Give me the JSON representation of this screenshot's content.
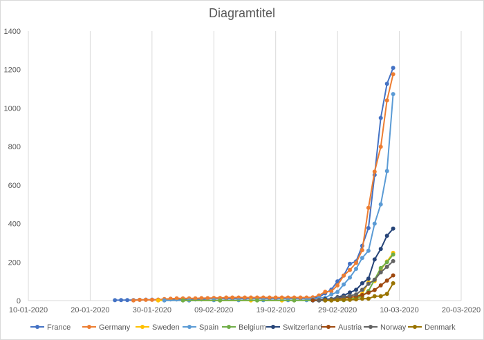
{
  "chart_data": {
    "type": "scatter",
    "title": "Diagramtitel",
    "xlabel": "",
    "ylabel": "",
    "x_ticks": [
      "10-01-2020",
      "20-01-2020",
      "30-01-2020",
      "09-02-2020",
      "19-02-2020",
      "29-02-2020",
      "10-03-2020",
      "20-03-2020"
    ],
    "y_ticks": [
      "0",
      "200",
      "400",
      "600",
      "800",
      "1000",
      "1200",
      "1400"
    ],
    "xlim": [
      "2020-01-10",
      "2020-03-20"
    ],
    "ylim": [
      0,
      1400
    ],
    "grid": "vertical",
    "legend": "bottom",
    "mode": "lines+markers",
    "series": [
      {
        "name": "France",
        "color": "#4472c4",
        "points": [
          [
            "2020-01-24",
            2
          ],
          [
            "2020-01-25",
            3
          ],
          [
            "2020-01-26",
            3
          ],
          [
            "2020-01-27",
            3
          ],
          [
            "2020-01-28",
            4
          ],
          [
            "2020-01-29",
            5
          ],
          [
            "2020-01-30",
            5
          ],
          [
            "2020-01-31",
            5
          ],
          [
            "2020-02-01",
            6
          ],
          [
            "2020-02-02",
            6
          ],
          [
            "2020-02-03",
            6
          ],
          [
            "2020-02-04",
            6
          ],
          [
            "2020-02-05",
            6
          ],
          [
            "2020-02-06",
            6
          ],
          [
            "2020-02-07",
            6
          ],
          [
            "2020-02-08",
            11
          ],
          [
            "2020-02-09",
            11
          ],
          [
            "2020-02-10",
            11
          ],
          [
            "2020-02-11",
            11
          ],
          [
            "2020-02-12",
            11
          ],
          [
            "2020-02-13",
            11
          ],
          [
            "2020-02-14",
            11
          ],
          [
            "2020-02-15",
            12
          ],
          [
            "2020-02-16",
            12
          ],
          [
            "2020-02-17",
            12
          ],
          [
            "2020-02-18",
            12
          ],
          [
            "2020-02-19",
            12
          ],
          [
            "2020-02-20",
            12
          ],
          [
            "2020-02-21",
            12
          ],
          [
            "2020-02-22",
            12
          ],
          [
            "2020-02-23",
            12
          ],
          [
            "2020-02-24",
            12
          ],
          [
            "2020-02-25",
            14
          ],
          [
            "2020-02-26",
            18
          ],
          [
            "2020-02-27",
            38
          ],
          [
            "2020-02-28",
            57
          ],
          [
            "2020-02-29",
            100
          ],
          [
            "2020-03-01",
            130
          ],
          [
            "2020-03-02",
            191
          ],
          [
            "2020-03-03",
            204
          ],
          [
            "2020-03-04",
            285
          ],
          [
            "2020-03-05",
            377
          ],
          [
            "2020-03-06",
            653
          ],
          [
            "2020-03-07",
            949
          ],
          [
            "2020-03-08",
            1126
          ],
          [
            "2020-03-09",
            1209
          ]
        ]
      },
      {
        "name": "Germany",
        "color": "#ed7d31",
        "points": [
          [
            "2020-01-27",
            1
          ],
          [
            "2020-01-28",
            4
          ],
          [
            "2020-01-29",
            4
          ],
          [
            "2020-01-30",
            4
          ],
          [
            "2020-01-31",
            5
          ],
          [
            "2020-02-01",
            8
          ],
          [
            "2020-02-02",
            10
          ],
          [
            "2020-02-03",
            12
          ],
          [
            "2020-02-04",
            12
          ],
          [
            "2020-02-05",
            12
          ],
          [
            "2020-02-06",
            12
          ],
          [
            "2020-02-07",
            13
          ],
          [
            "2020-02-08",
            13
          ],
          [
            "2020-02-09",
            14
          ],
          [
            "2020-02-10",
            14
          ],
          [
            "2020-02-11",
            16
          ],
          [
            "2020-02-12",
            16
          ],
          [
            "2020-02-13",
            16
          ],
          [
            "2020-02-14",
            16
          ],
          [
            "2020-02-15",
            16
          ],
          [
            "2020-02-16",
            16
          ],
          [
            "2020-02-17",
            16
          ],
          [
            "2020-02-18",
            16
          ],
          [
            "2020-02-19",
            16
          ],
          [
            "2020-02-20",
            16
          ],
          [
            "2020-02-21",
            16
          ],
          [
            "2020-02-22",
            16
          ],
          [
            "2020-02-23",
            16
          ],
          [
            "2020-02-24",
            16
          ],
          [
            "2020-02-25",
            17
          ],
          [
            "2020-02-26",
            27
          ],
          [
            "2020-02-27",
            46
          ],
          [
            "2020-02-28",
            48
          ],
          [
            "2020-02-29",
            79
          ],
          [
            "2020-03-01",
            130
          ],
          [
            "2020-03-02",
            159
          ],
          [
            "2020-03-03",
            196
          ],
          [
            "2020-03-04",
            262
          ],
          [
            "2020-03-05",
            482
          ],
          [
            "2020-03-06",
            670
          ],
          [
            "2020-03-07",
            799
          ],
          [
            "2020-03-08",
            1040
          ],
          [
            "2020-03-09",
            1176
          ]
        ]
      },
      {
        "name": "Sweden",
        "color": "#ffc000",
        "points": [
          [
            "2020-01-31",
            1
          ],
          [
            "2020-02-05",
            1
          ],
          [
            "2020-02-10",
            1
          ],
          [
            "2020-02-15",
            1
          ],
          [
            "2020-02-20",
            1
          ],
          [
            "2020-02-25",
            2
          ],
          [
            "2020-02-26",
            2
          ],
          [
            "2020-02-27",
            7
          ],
          [
            "2020-02-28",
            7
          ],
          [
            "2020-02-29",
            12
          ],
          [
            "2020-03-01",
            14
          ],
          [
            "2020-03-02",
            15
          ],
          [
            "2020-03-03",
            21
          ],
          [
            "2020-03-04",
            35
          ],
          [
            "2020-03-05",
            94
          ],
          [
            "2020-03-06",
            101
          ],
          [
            "2020-03-07",
            161
          ],
          [
            "2020-03-08",
            203
          ],
          [
            "2020-03-09",
            248
          ]
        ]
      },
      {
        "name": "Spain",
        "color": "#5b9bd5",
        "points": [
          [
            "2020-02-01",
            1
          ],
          [
            "2020-02-05",
            1
          ],
          [
            "2020-02-09",
            2
          ],
          [
            "2020-02-13",
            2
          ],
          [
            "2020-02-17",
            2
          ],
          [
            "2020-02-21",
            2
          ],
          [
            "2020-02-24",
            2
          ],
          [
            "2020-02-25",
            6
          ],
          [
            "2020-02-26",
            13
          ],
          [
            "2020-02-27",
            15
          ],
          [
            "2020-02-28",
            32
          ],
          [
            "2020-02-29",
            45
          ],
          [
            "2020-03-01",
            84
          ],
          [
            "2020-03-02",
            120
          ],
          [
            "2020-03-03",
            165
          ],
          [
            "2020-03-04",
            222
          ],
          [
            "2020-03-05",
            259
          ],
          [
            "2020-03-06",
            400
          ],
          [
            "2020-03-07",
            500
          ],
          [
            "2020-03-08",
            673
          ],
          [
            "2020-03-09",
            1073
          ]
        ]
      },
      {
        "name": "Belgium",
        "color": "#70ad47",
        "points": [
          [
            "2020-02-04",
            1
          ],
          [
            "2020-02-10",
            1
          ],
          [
            "2020-02-16",
            1
          ],
          [
            "2020-02-22",
            1
          ],
          [
            "2020-02-28",
            1
          ],
          [
            "2020-03-01",
            2
          ],
          [
            "2020-03-02",
            8
          ],
          [
            "2020-03-03",
            13
          ],
          [
            "2020-03-04",
            23
          ],
          [
            "2020-03-05",
            50
          ],
          [
            "2020-03-06",
            109
          ],
          [
            "2020-03-07",
            169
          ],
          [
            "2020-03-08",
            200
          ],
          [
            "2020-03-09",
            239
          ]
        ]
      },
      {
        "name": "Switzerland",
        "color": "#264478",
        "points": [
          [
            "2020-02-25",
            1
          ],
          [
            "2020-02-26",
            1
          ],
          [
            "2020-02-27",
            8
          ],
          [
            "2020-02-28",
            8
          ],
          [
            "2020-02-29",
            18
          ],
          [
            "2020-03-01",
            27
          ],
          [
            "2020-03-02",
            42
          ],
          [
            "2020-03-03",
            56
          ],
          [
            "2020-03-04",
            90
          ],
          [
            "2020-03-05",
            114
          ],
          [
            "2020-03-06",
            214
          ],
          [
            "2020-03-07",
            268
          ],
          [
            "2020-03-08",
            337
          ],
          [
            "2020-03-09",
            374
          ]
        ]
      },
      {
        "name": "Austria",
        "color": "#9e480e",
        "points": [
          [
            "2020-02-25",
            2
          ],
          [
            "2020-02-26",
            2
          ],
          [
            "2020-02-27",
            3
          ],
          [
            "2020-02-28",
            3
          ],
          [
            "2020-02-29",
            9
          ],
          [
            "2020-03-01",
            14
          ],
          [
            "2020-03-02",
            18
          ],
          [
            "2020-03-03",
            21
          ],
          [
            "2020-03-04",
            29
          ],
          [
            "2020-03-05",
            41
          ],
          [
            "2020-03-06",
            55
          ],
          [
            "2020-03-07",
            79
          ],
          [
            "2020-03-08",
            104
          ],
          [
            "2020-03-09",
            131
          ]
        ]
      },
      {
        "name": "Norway",
        "color": "#636363",
        "points": [
          [
            "2020-02-26",
            1
          ],
          [
            "2020-02-27",
            1
          ],
          [
            "2020-02-28",
            6
          ],
          [
            "2020-02-29",
            15
          ],
          [
            "2020-03-01",
            19
          ],
          [
            "2020-03-02",
            25
          ],
          [
            "2020-03-03",
            32
          ],
          [
            "2020-03-04",
            56
          ],
          [
            "2020-03-05",
            87
          ],
          [
            "2020-03-06",
            108
          ],
          [
            "2020-03-07",
            147
          ],
          [
            "2020-03-08",
            176
          ],
          [
            "2020-03-09",
            205
          ]
        ]
      },
      {
        "name": "Denmark",
        "color": "#997300",
        "points": [
          [
            "2020-02-27",
            1
          ],
          [
            "2020-02-28",
            1
          ],
          [
            "2020-02-29",
            3
          ],
          [
            "2020-03-01",
            4
          ],
          [
            "2020-03-02",
            4
          ],
          [
            "2020-03-03",
            6
          ],
          [
            "2020-03-04",
            10
          ],
          [
            "2020-03-05",
            10
          ],
          [
            "2020-03-06",
            23
          ],
          [
            "2020-03-07",
            23
          ],
          [
            "2020-03-08",
            35
          ],
          [
            "2020-03-09",
            90
          ]
        ]
      }
    ]
  }
}
